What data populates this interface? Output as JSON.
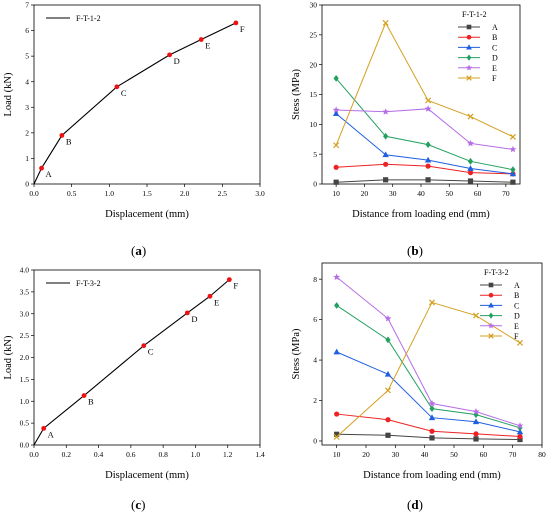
{
  "panel_labels": [
    "(a)",
    "(b)",
    "(c)",
    "(d)"
  ],
  "chart_data": [
    {
      "id": "a",
      "type": "line",
      "xlabel": "Displacement (mm)",
      "ylabel": "Load (kN)",
      "xlim": [
        0,
        3.0
      ],
      "ylim": [
        0,
        7
      ],
      "xticks": [
        "0.0",
        "0.5",
        "1.0",
        "1.5",
        "2.0",
        "2.5",
        "3.0"
      ],
      "xtick_values": [
        0,
        0.5,
        1.0,
        1.5,
        2.0,
        2.5,
        3.0
      ],
      "yticks": [
        "0",
        "1",
        "2",
        "3",
        "4",
        "5",
        "6",
        "7"
      ],
      "ytick_values": [
        0,
        1,
        2,
        3,
        4,
        5,
        6,
        7
      ],
      "legend_position": "top-left",
      "series": [
        {
          "name": "F-T-1-2",
          "color": "#000000",
          "x": [
            0,
            0.1,
            0.37,
            1.1,
            1.8,
            2.22,
            2.68
          ],
          "y": [
            0,
            0.62,
            1.9,
            3.8,
            5.05,
            5.65,
            6.3
          ]
        }
      ],
      "markers": {
        "color": "#ee1111",
        "labels": [
          "A",
          "B",
          "C",
          "D",
          "E",
          "F"
        ],
        "x": [
          0.1,
          0.37,
          1.1,
          1.8,
          2.22,
          2.68
        ],
        "y": [
          0.62,
          1.9,
          3.8,
          5.05,
          5.65,
          6.3
        ]
      }
    },
    {
      "id": "b",
      "type": "line",
      "xlabel": "Distance from loading end (mm)",
      "ylabel": "Stess (MPa)",
      "xlim": [
        5,
        75
      ],
      "ylim": [
        0,
        30
      ],
      "xticks": [
        "10",
        "20",
        "30",
        "40",
        "50",
        "60",
        "70"
      ],
      "xtick_values": [
        10,
        20,
        30,
        40,
        50,
        60,
        70
      ],
      "yticks": [
        "0",
        "5",
        "10",
        "15",
        "20",
        "25",
        "30"
      ],
      "ytick_values": [
        0,
        5,
        10,
        15,
        20,
        25,
        30
      ],
      "legend_title": "F-T-1-2",
      "legend_position": "top-right",
      "x": [
        10,
        27.5,
        42.5,
        57.5,
        72.5
      ],
      "series": [
        {
          "name": "A",
          "color": "#444444",
          "marker": "square",
          "values": [
            0.3,
            0.7,
            0.7,
            0.5,
            0.3
          ]
        },
        {
          "name": "B",
          "color": "#ee2222",
          "marker": "circle",
          "values": [
            2.8,
            3.3,
            3.0,
            1.9,
            1.7
          ]
        },
        {
          "name": "C",
          "color": "#1f5fe0",
          "marker": "triangle",
          "values": [
            11.8,
            4.9,
            4.0,
            2.6,
            1.7
          ]
        },
        {
          "name": "D",
          "color": "#22a060",
          "marker": "diamond",
          "values": [
            17.7,
            8.0,
            6.6,
            3.8,
            2.4
          ]
        },
        {
          "name": "E",
          "color": "#b66ee6",
          "marker": "star",
          "values": [
            12.4,
            12.1,
            12.6,
            6.8,
            5.8
          ]
        },
        {
          "name": "F",
          "color": "#d4a020",
          "marker": "x",
          "values": [
            6.5,
            27.0,
            14.0,
            11.3,
            7.9
          ]
        }
      ]
    },
    {
      "id": "c",
      "type": "line",
      "xlabel": "Displacement (mm)",
      "ylabel": "Load (kN)",
      "xlim": [
        0,
        1.4
      ],
      "ylim": [
        0,
        4.0
      ],
      "xticks": [
        "0.0",
        "0.2",
        "0.4",
        "0.6",
        "0.8",
        "1.0",
        "1.2",
        "1.4"
      ],
      "xtick_values": [
        0,
        0.2,
        0.4,
        0.6,
        0.8,
        1.0,
        1.2,
        1.4
      ],
      "yticks": [
        "0.0",
        "0.5",
        "1.0",
        "1.5",
        "2.0",
        "2.5",
        "3.0",
        "3.5",
        "4.0"
      ],
      "ytick_values": [
        0,
        0.5,
        1.0,
        1.5,
        2.0,
        2.5,
        3.0,
        3.5,
        4.0
      ],
      "legend_position": "top-left",
      "series": [
        {
          "name": "F-T-3-2",
          "color": "#000000",
          "x": [
            0,
            0.06,
            0.31,
            0.68,
            0.95,
            1.09,
            1.21
          ],
          "y": [
            0,
            0.38,
            1.13,
            2.27,
            3.02,
            3.4,
            3.78
          ]
        }
      ],
      "markers": {
        "color": "#ee1111",
        "labels": [
          "A",
          "B",
          "C",
          "D",
          "E",
          "F"
        ],
        "x": [
          0.06,
          0.31,
          0.68,
          0.95,
          1.09,
          1.21
        ],
        "y": [
          0.38,
          1.13,
          2.27,
          3.02,
          3.4,
          3.78
        ]
      }
    },
    {
      "id": "d",
      "type": "line",
      "xlabel": "Distance from loading end (mm)",
      "ylabel": "Stess (MPa)",
      "xlim": [
        5,
        80
      ],
      "ylim": [
        -0.2,
        8.8
      ],
      "xticks": [
        "10",
        "20",
        "30",
        "40",
        "50",
        "60",
        "70",
        "80"
      ],
      "xtick_values": [
        10,
        20,
        30,
        40,
        50,
        60,
        70,
        80
      ],
      "yticks": [
        "0",
        "2",
        "4",
        "6",
        "8"
      ],
      "ytick_values": [
        0,
        2,
        4,
        6,
        8
      ],
      "legend_title": "F-T-3-2",
      "legend_position": "top-right",
      "x": [
        10,
        27.5,
        42.5,
        57.5,
        72.5
      ],
      "series": [
        {
          "name": "A",
          "color": "#444444",
          "marker": "square",
          "values": [
            0.33,
            0.28,
            0.15,
            0.1,
            0.07
          ]
        },
        {
          "name": "B",
          "color": "#ee2222",
          "marker": "circle",
          "values": [
            1.33,
            1.05,
            0.48,
            0.35,
            0.22
          ]
        },
        {
          "name": "C",
          "color": "#1f5fe0",
          "marker": "triangle",
          "values": [
            4.4,
            3.3,
            1.15,
            0.95,
            0.45
          ]
        },
        {
          "name": "D",
          "color": "#22a060",
          "marker": "diamond",
          "values": [
            6.7,
            5.0,
            1.6,
            1.3,
            0.65
          ]
        },
        {
          "name": "E",
          "color": "#b66ee6",
          "marker": "star",
          "values": [
            8.1,
            6.05,
            1.85,
            1.45,
            0.75
          ]
        },
        {
          "name": "F",
          "color": "#d4a020",
          "marker": "x",
          "values": [
            0.2,
            2.5,
            6.85,
            6.2,
            4.85
          ]
        }
      ]
    }
  ]
}
